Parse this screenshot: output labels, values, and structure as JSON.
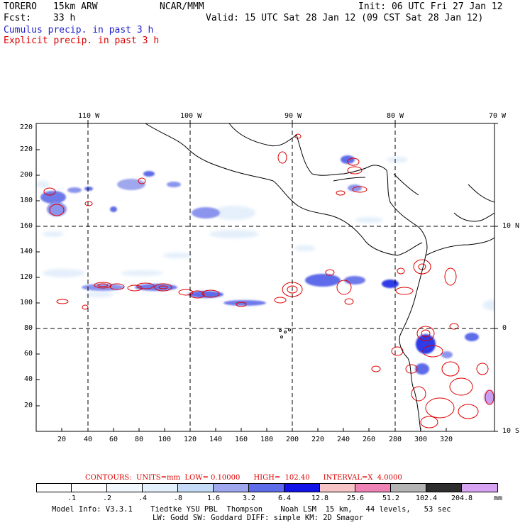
{
  "header": {
    "model": "TORERO",
    "resolution": "15km ARW",
    "org": "NCAR/MMM",
    "init": "Init: 06 UTC Fri 27 Jan 12",
    "fcst_label": "Fcst:",
    "fcst_value": "33 h",
    "valid": "Valid: 15 UTC Sat 28 Jan 12 (09 CST Sat 28 Jan 12)",
    "field_cumulus": "Cumulus precip. in past 3 h",
    "field_explicit": "Explicit precip. in past 3 h"
  },
  "colors": {
    "cumulus": "#1f1fd6",
    "explicit": "#e00000",
    "coast": "#000000"
  },
  "map": {
    "lon_labels": [
      "110 W",
      "100 W",
      "90 W",
      "80 W",
      "70 W"
    ],
    "lat_labels": [
      "10 N",
      "0",
      "10 S"
    ],
    "x_ticks": [
      "20",
      "40",
      "60",
      "80",
      "100",
      "120",
      "140",
      "160",
      "180",
      "200",
      "220",
      "240",
      "260",
      "280",
      "300",
      "320"
    ],
    "y_ticks": [
      "20",
      "40",
      "60",
      "80",
      "100",
      "120",
      "140",
      "160",
      "180",
      "200",
      "220"
    ]
  },
  "footer": {
    "contours": "CONTOURS:  UNITS=mm  LOW= 0.10000      HIGH=  102.40      INTERVAL=X  4.0000",
    "colorbar_labels": [
      ".1",
      ".2",
      ".4",
      ".8",
      "1.6",
      "3.2",
      "6.4",
      "12.8",
      "25.6",
      "51.2",
      "102.4",
      "204.8"
    ],
    "colorbar_unit": "mm",
    "colorbar_colors": [
      "#ffffff",
      "#ffffff",
      "#f3f8fd",
      "#e4f0fb",
      "#c6dcf6",
      "#9fa7ee",
      "#5f6cea",
      "#1212e8",
      "#f6c4c4",
      "#f083b6",
      "#b4b4b4",
      "#2e2e2e",
      "#d9a3f3"
    ],
    "model_info": "Model Info: V3.3.1    Tiedtke YSU PBL  Thompson    Noah LSM  15 km,   44 levels,   53 sec",
    "model_info_2": "LW: Godd SW: Goddard DIFF: simple KM: 2D Smagor"
  }
}
